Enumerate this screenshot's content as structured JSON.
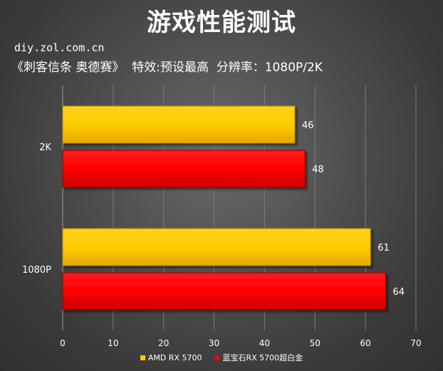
{
  "header": {
    "title": "游戏性能测试",
    "source": "diy.zol.com.cn",
    "subtitle": "《刺客信条 奥德赛》  特效:预设最高  分辨率：1080P/2K"
  },
  "colors": {
    "amd": "#FFCC00",
    "sapphire": "#FF0000"
  },
  "chart_data": {
    "type": "bar",
    "orientation": "horizontal",
    "categories": [
      "2K",
      "1080P"
    ],
    "series": [
      {
        "name": "AMD RX 5700",
        "values": [
          46,
          61
        ]
      },
      {
        "name": "蓝宝石RX 5700超白金",
        "values": [
          48,
          64
        ]
      }
    ],
    "xlim": [
      0,
      70
    ],
    "xticks": [
      0,
      10,
      20,
      30,
      40,
      50,
      60,
      70
    ],
    "grid": "vertical",
    "legend": "bottom"
  }
}
